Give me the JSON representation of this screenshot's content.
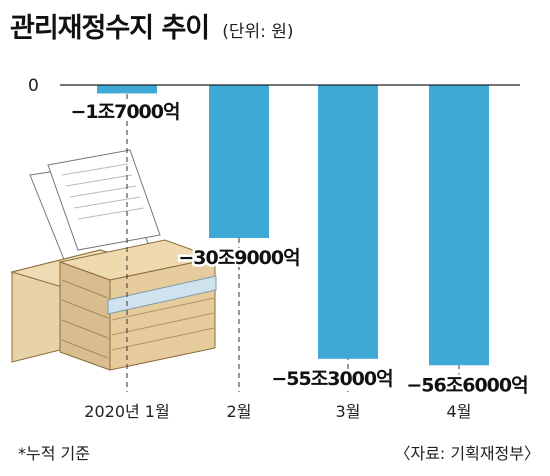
{
  "header": {
    "title": "관리재정수지 추이",
    "unit": "(단위: 원)"
  },
  "footer": {
    "note": "*누적 기준",
    "source": "〈자료: 기획재정부〉"
  },
  "colors": {
    "bar": "#3fa9d6",
    "axis": "#222222",
    "guide": "#333333"
  },
  "chart_data": {
    "type": "bar",
    "categories": [
      "2020년 1월",
      "2월",
      "3월",
      "4월"
    ],
    "values": [
      -1.7,
      -30.9,
      -55.3,
      -56.6
    ],
    "value_labels": [
      "−1조7000억",
      "−30조9000억",
      "−55조3000억",
      "−56조6000억"
    ],
    "zero_label": "0",
    "ylim": [
      -62,
      0
    ],
    "grid": false,
    "legend": "none"
  }
}
